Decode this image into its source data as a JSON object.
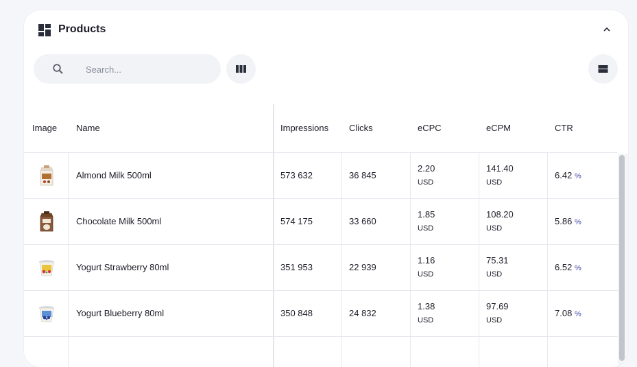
{
  "panel": {
    "title": "Products"
  },
  "search": {
    "placeholder": "Search..."
  },
  "columns": [
    "Image",
    "Name",
    "Impressions",
    "Clicks",
    "eCPC",
    "eCPM",
    "CTR"
  ],
  "rows": [
    {
      "name": "Almond Milk 500ml",
      "impressions": "573 632",
      "clicks": "36 845",
      "ecpc": "2.20",
      "ecpc_unit": "USD",
      "ecpm": "141.40",
      "ecpm_unit": "USD",
      "ctr": "6.42",
      "ctr_unit": "%",
      "image_icon": "milk-carton-icon"
    },
    {
      "name": "Chocolate Milk 500ml",
      "impressions": "574 175",
      "clicks": "33 660",
      "ecpc": "1.85",
      "ecpc_unit": "USD",
      "ecpm": "108.20",
      "ecpm_unit": "USD",
      "ctr": "5.86",
      "ctr_unit": "%",
      "image_icon": "chocolate-milk-icon"
    },
    {
      "name": "Yogurt Strawberry 80ml",
      "impressions": "351 953",
      "clicks": "22 939",
      "ecpc": "1.16",
      "ecpc_unit": "USD",
      "ecpm": "75.31",
      "ecpm_unit": "USD",
      "ctr": "6.52",
      "ctr_unit": "%",
      "image_icon": "yogurt-cup-icon"
    },
    {
      "name": "Yogurt Blueberry 80ml",
      "impressions": "350 848",
      "clicks": "24 832",
      "ecpc": "1.38",
      "ecpc_unit": "USD",
      "ecpm": "97.69",
      "ecpm_unit": "USD",
      "ctr": "7.08",
      "ctr_unit": "%",
      "image_icon": "yogurt-cup-icon"
    }
  ],
  "colors": {
    "accent": "#3b3fa8",
    "surface": "#f1f3f7",
    "background": "#f4f6fa"
  },
  "icons": {
    "panel": "dashboard-icon",
    "collapse": "chevron-up-icon",
    "search": "search-icon",
    "columns": "columns-icon",
    "density": "density-icon"
  }
}
